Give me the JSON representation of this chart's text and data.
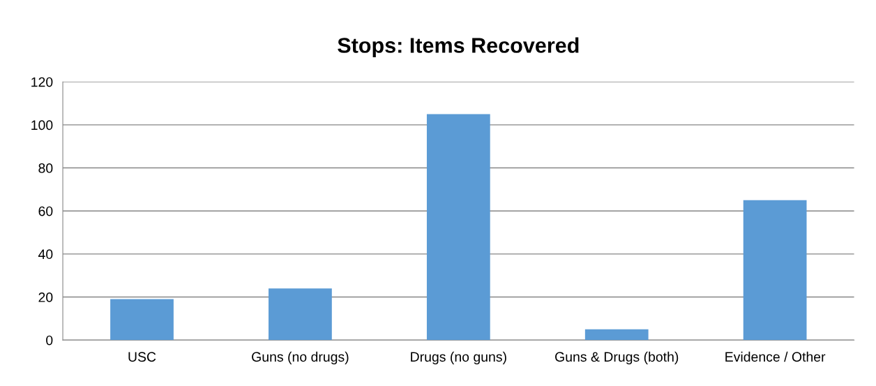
{
  "chart_data": {
    "type": "bar",
    "title": "Stops: Items Recovered",
    "categories": [
      "USC",
      "Guns (no drugs)",
      "Drugs (no guns)",
      "Guns & Drugs (both)",
      "Evidence / Other"
    ],
    "values": [
      19,
      24,
      105,
      5,
      65
    ],
    "color": "#5b9bd5",
    "ylim": [
      0,
      120
    ],
    "yticks": [
      0,
      20,
      40,
      60,
      80,
      100,
      120
    ],
    "grid": "y",
    "legend": false
  }
}
